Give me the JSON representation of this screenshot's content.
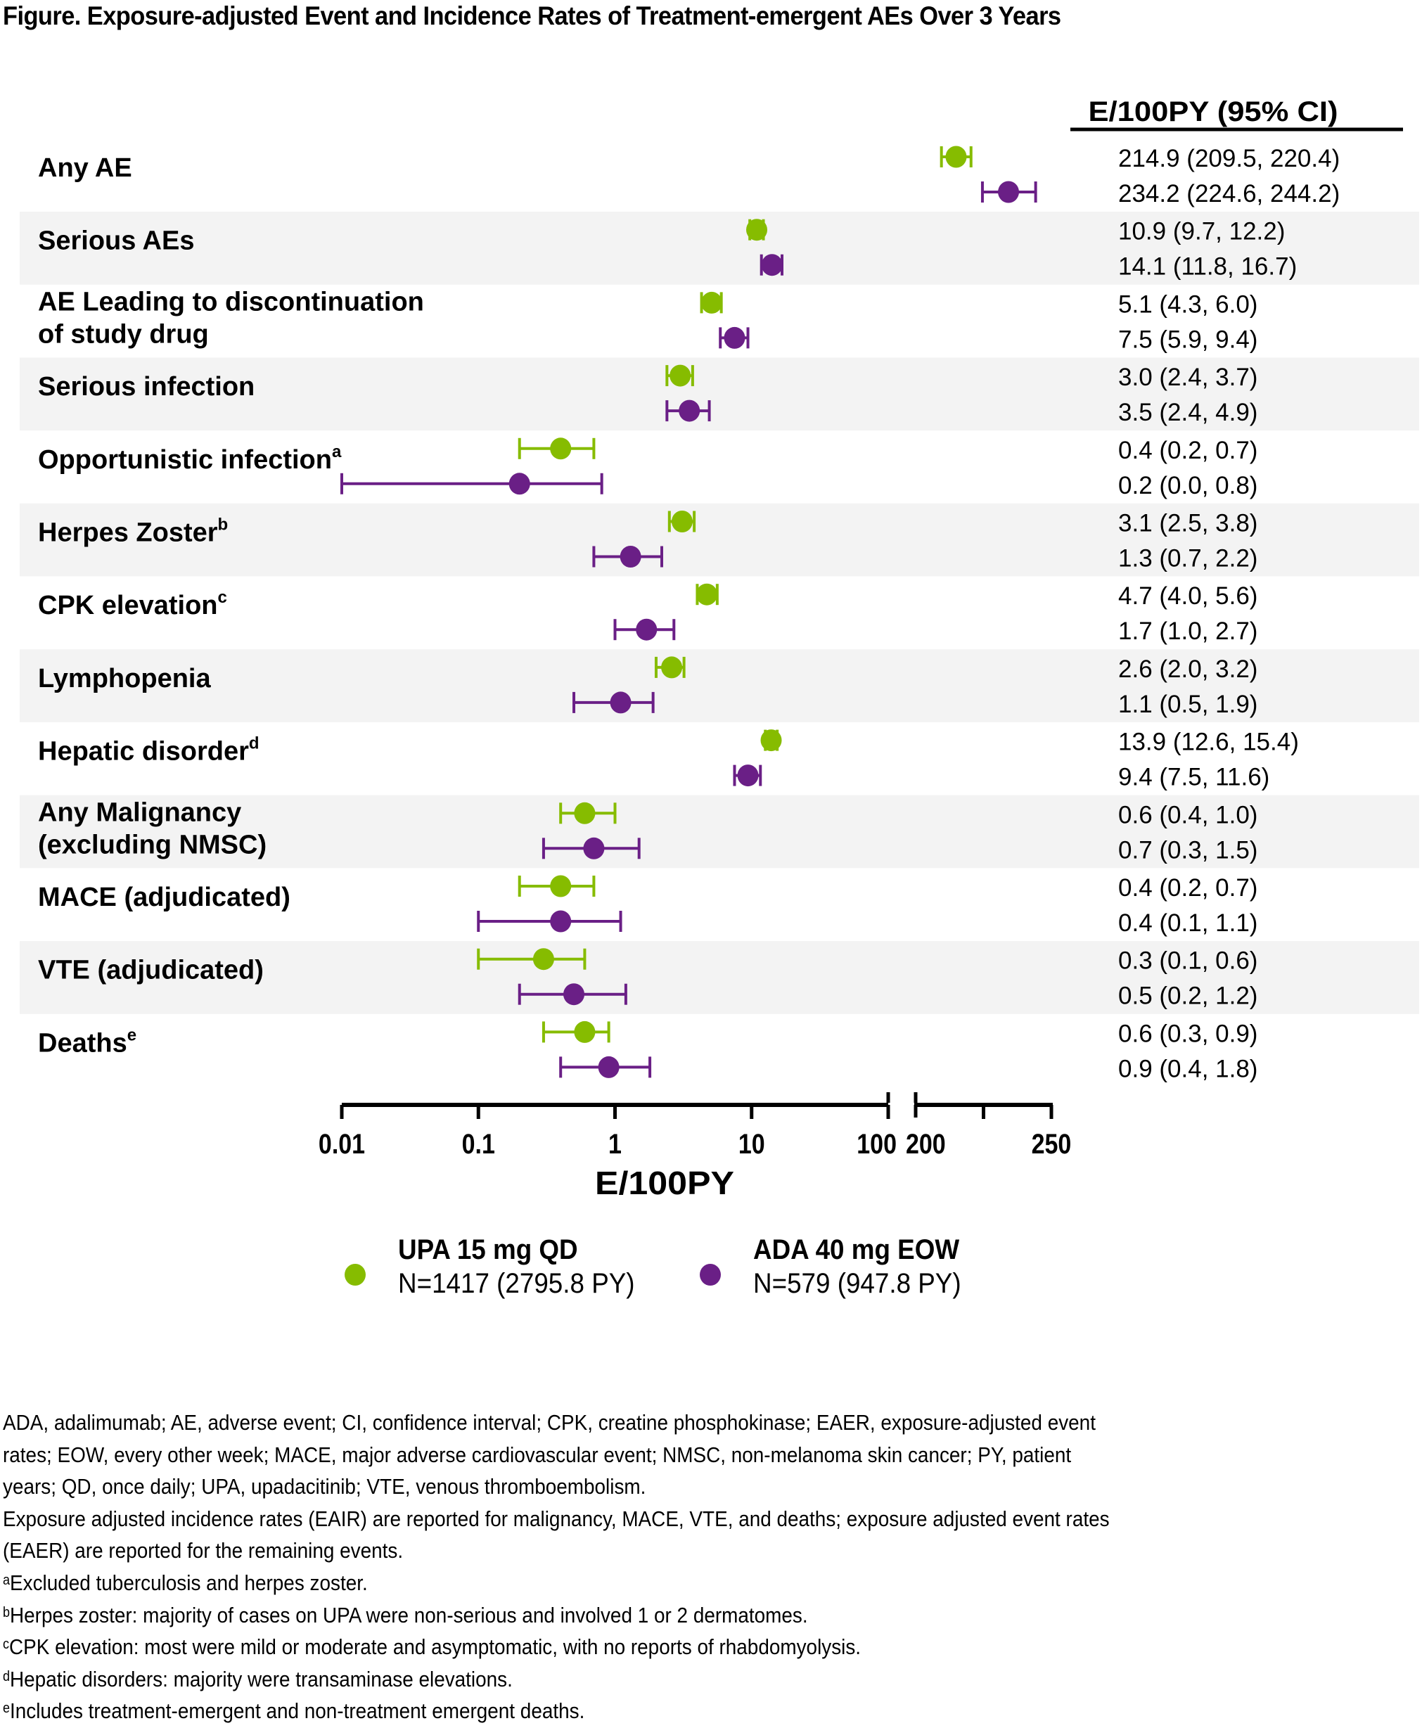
{
  "figure": {
    "title": "Figure. Exposure-adjusted Event and Incidence Rates of Treatment-emergent AEs Over 3 Years"
  },
  "colors": {
    "upa": "#86bc00",
    "ada": "#6a1f86",
    "band": "#f3f3f3",
    "axis": "#000000"
  },
  "legend": {
    "items": [
      {
        "name": "UPA 15 mg QD",
        "n": "N=1417 (2795.8 PY)",
        "color_key": "upa"
      },
      {
        "name": "ADA 40 mg EOW",
        "n": "N=579 (947.8 PY)",
        "color_key": "ada"
      }
    ]
  },
  "chart_data": {
    "type": "forest",
    "title": "Exposure-adjusted Event and Incidence Rates of Treatment-emergent AEs Over 3 Years",
    "xlabel": "E/100PY",
    "table_header": "E/100PY (95%  CI)",
    "x_axis": {
      "segments": [
        {
          "scale": "log",
          "range": [
            0.01,
            100
          ],
          "ticks": [
            0.01,
            0.1,
            1,
            10,
            100
          ],
          "tick_labels": [
            "0.01",
            "0.1",
            "1",
            "10",
            "100"
          ]
        },
        {
          "scale": "linear",
          "range": [
            200,
            250
          ],
          "ticks": [
            200,
            225,
            250
          ],
          "tick_labels": [
            "200",
            "",
            "250"
          ]
        }
      ]
    },
    "grid": false,
    "legend_position": "bottom",
    "series": [
      {
        "name": "UPA 15 mg QD",
        "key": "upa"
      },
      {
        "name": "ADA 40 mg EOW",
        "key": "ada"
      }
    ],
    "categories": [
      {
        "label": [
          "Any AE"
        ],
        "sup": "",
        "upa": {
          "est": 214.9,
          "lo": 209.5,
          "hi": 220.4,
          "text": "214.9 (209.5, 220.4)"
        },
        "ada": {
          "est": 234.2,
          "lo": 224.6,
          "hi": 244.2,
          "text": "234.2 (224.6, 244.2)"
        }
      },
      {
        "label": [
          "Serious AEs"
        ],
        "sup": "",
        "upa": {
          "est": 10.9,
          "lo": 9.7,
          "hi": 12.2,
          "text": "10.9 (9.7, 12.2)"
        },
        "ada": {
          "est": 14.1,
          "lo": 11.8,
          "hi": 16.7,
          "text": "14.1 (11.8, 16.7)"
        }
      },
      {
        "label": [
          "AE Leading to discontinuation",
          "of study drug"
        ],
        "sup": "",
        "upa": {
          "est": 5.1,
          "lo": 4.3,
          "hi": 6.0,
          "text": "5.1 (4.3, 6.0)"
        },
        "ada": {
          "est": 7.5,
          "lo": 5.9,
          "hi": 9.4,
          "text": "7.5 (5.9, 9.4)"
        }
      },
      {
        "label": [
          "Serious infection"
        ],
        "sup": "",
        "upa": {
          "est": 3.0,
          "lo": 2.4,
          "hi": 3.7,
          "text": "3.0 (2.4, 3.7)"
        },
        "ada": {
          "est": 3.5,
          "lo": 2.4,
          "hi": 4.9,
          "text": "3.5 (2.4, 4.9)"
        }
      },
      {
        "label": [
          "Opportunistic infection"
        ],
        "sup": "a",
        "upa": {
          "est": 0.4,
          "lo": 0.2,
          "hi": 0.7,
          "text": "0.4 (0.2, 0.7)"
        },
        "ada": {
          "est": 0.2,
          "lo": 0.0,
          "hi": 0.8,
          "text": "0.2 (0.0, 0.8)"
        }
      },
      {
        "label": [
          "Herpes Zoster"
        ],
        "sup": "b",
        "upa": {
          "est": 3.1,
          "lo": 2.5,
          "hi": 3.8,
          "text": "3.1 (2.5, 3.8)"
        },
        "ada": {
          "est": 1.3,
          "lo": 0.7,
          "hi": 2.2,
          "text": "1.3 (0.7, 2.2)"
        }
      },
      {
        "label": [
          "CPK elevation"
        ],
        "sup": "c",
        "upa": {
          "est": 4.7,
          "lo": 4.0,
          "hi": 5.6,
          "text": "4.7 (4.0, 5.6)"
        },
        "ada": {
          "est": 1.7,
          "lo": 1.0,
          "hi": 2.7,
          "text": "1.7 (1.0, 2.7)"
        }
      },
      {
        "label": [
          "Lymphopenia"
        ],
        "sup": "",
        "upa": {
          "est": 2.6,
          "lo": 2.0,
          "hi": 3.2,
          "text": "2.6 (2.0, 3.2)"
        },
        "ada": {
          "est": 1.1,
          "lo": 0.5,
          "hi": 1.9,
          "text": "1.1 (0.5, 1.9)"
        }
      },
      {
        "label": [
          "Hepatic disorder"
        ],
        "sup": "d",
        "upa": {
          "est": 13.9,
          "lo": 12.6,
          "hi": 15.4,
          "text": "13.9 (12.6, 15.4)"
        },
        "ada": {
          "est": 9.4,
          "lo": 7.5,
          "hi": 11.6,
          "text": "9.4 (7.5, 11.6)"
        }
      },
      {
        "label": [
          "Any Malignancy",
          "(excluding NMSC)"
        ],
        "sup": "",
        "upa": {
          "est": 0.6,
          "lo": 0.4,
          "hi": 1.0,
          "text": "0.6 (0.4, 1.0)"
        },
        "ada": {
          "est": 0.7,
          "lo": 0.3,
          "hi": 1.5,
          "text": "0.7 (0.3, 1.5)"
        }
      },
      {
        "label": [
          "MACE (adjudicated)"
        ],
        "sup": "",
        "upa": {
          "est": 0.4,
          "lo": 0.2,
          "hi": 0.7,
          "text": "0.4 (0.2, 0.7)"
        },
        "ada": {
          "est": 0.4,
          "lo": 0.1,
          "hi": 1.1,
          "text": "0.4 (0.1, 1.1)"
        }
      },
      {
        "label": [
          "VTE (adjudicated)"
        ],
        "sup": "",
        "upa": {
          "est": 0.3,
          "lo": 0.1,
          "hi": 0.6,
          "text": "0.3 (0.1, 0.6)"
        },
        "ada": {
          "est": 0.5,
          "lo": 0.2,
          "hi": 1.2,
          "text": "0.5 (0.2, 1.2)"
        }
      },
      {
        "label": [
          "Deaths"
        ],
        "sup": "e",
        "upa": {
          "est": 0.6,
          "lo": 0.3,
          "hi": 0.9,
          "text": "0.6 (0.3, 0.9)"
        },
        "ada": {
          "est": 0.9,
          "lo": 0.4,
          "hi": 1.8,
          "text": "0.9 (0.4, 1.8)"
        }
      }
    ]
  },
  "footnotes": {
    "abbreviations": [
      "ADA, adalimumab; AE, adverse event; CI, confidence interval; CPK, creatine phosphokinase; EAER, exposure-adjusted event",
      "rates; EOW, every other week; MACE, major adverse cardiovascular event; NMSC, non-melanoma skin cancer; PY, patient",
      "years; QD, once daily; UPA, upadacitinib; VTE, venous thromboembolism."
    ],
    "rates_note": [
      "Exposure adjusted incidence rates (EAIR) are reported for malignancy, MACE, VTE, and deaths; exposure adjusted event rates",
      "(EAER) are reported for the remaining events."
    ],
    "notes": [
      {
        "mark": "a",
        "text": "Excluded tuberculosis and herpes zoster."
      },
      {
        "mark": "b",
        "text": "Herpes zoster: majority of cases on UPA were non-serious and involved 1 or 2 dermatomes."
      },
      {
        "mark": "c",
        "text": "CPK elevation: most were mild or moderate and asymptomatic, with no reports of rhabdomyolysis."
      },
      {
        "mark": "d",
        "text": "Hepatic disorders: majority were transaminase elevations."
      },
      {
        "mark": "e",
        "text": "Includes treatment-emergent and non-treatment emergent deaths."
      }
    ]
  }
}
